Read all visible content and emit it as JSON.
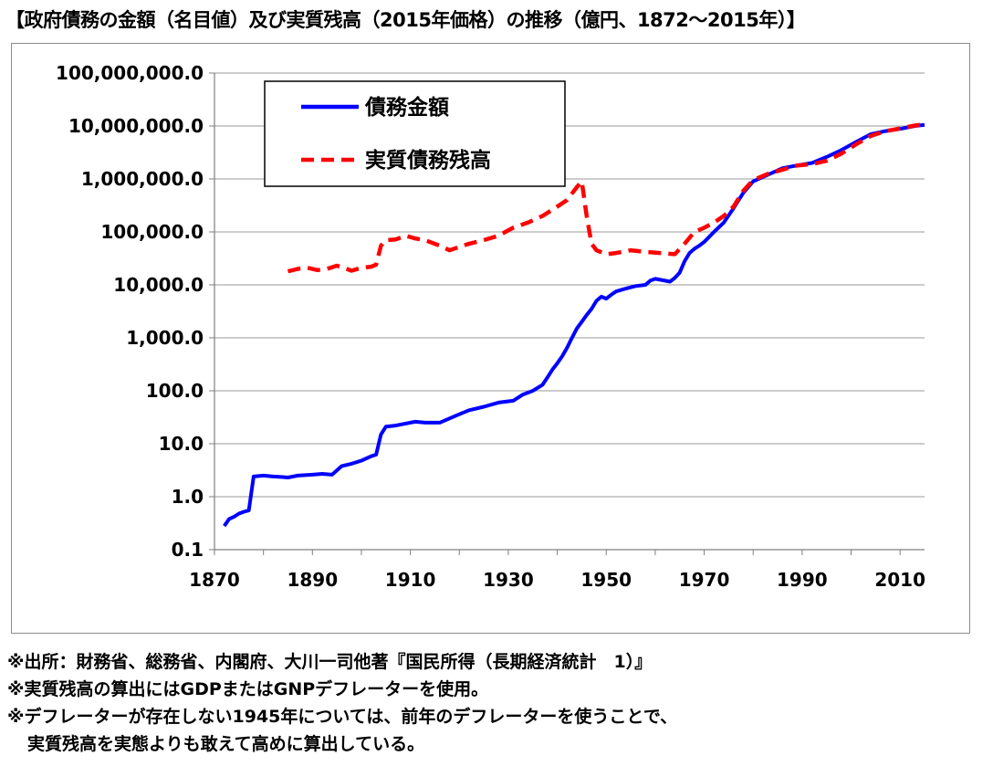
{
  "title": "【政府債務の金額（名目値）及び実質残高（2015年価格）の推移（億円、1872～2015年）】",
  "notes": [
    "※出所：財務省、総務省、内閣府、大川一司他著『国民所得（長期経済統計　1）』",
    "※実質残高の算出にはGDPまたはGNPデフレーターを使用。",
    "※デフレーターが存在しない1945年については、前年のデフレーターを使うことで、",
    "実質残高を実態よりも敢えて高めに算出している。"
  ],
  "chart_data": {
    "type": "line",
    "yscale": "log",
    "xlim": [
      1870,
      2015
    ],
    "ylim": [
      0.1,
      100000000
    ],
    "x_ticks": [
      1870,
      1890,
      1910,
      1930,
      1950,
      1970,
      1990,
      2010
    ],
    "y_ticks": [
      0.1,
      1,
      10,
      100,
      1000,
      10000,
      100000,
      1000000,
      10000000,
      100000000
    ],
    "y_tick_labels": [
      "0.1",
      "1.0",
      "10.0",
      "100.0",
      "1,000.0",
      "10,000.0",
      "100,000.0",
      "1,000,000.0",
      "10,000,000.0",
      "100,000,000.0"
    ],
    "grid": "horizontal",
    "legend_position": "top-left",
    "series": [
      {
        "name": "債務金額",
        "color": "#0000ff",
        "style": "solid",
        "points": [
          [
            1872,
            0.28
          ],
          [
            1873,
            0.38
          ],
          [
            1874,
            0.42
          ],
          [
            1875,
            0.48
          ],
          [
            1876,
            0.52
          ],
          [
            1877,
            0.55
          ],
          [
            1878,
            2.4
          ],
          [
            1880,
            2.5
          ],
          [
            1882,
            2.4
          ],
          [
            1884,
            2.35
          ],
          [
            1885,
            2.3
          ],
          [
            1887,
            2.5
          ],
          [
            1890,
            2.6
          ],
          [
            1892,
            2.7
          ],
          [
            1894,
            2.6
          ],
          [
            1896,
            3.8
          ],
          [
            1898,
            4.2
          ],
          [
            1900,
            4.8
          ],
          [
            1902,
            5.8
          ],
          [
            1903,
            6.2
          ],
          [
            1904,
            15
          ],
          [
            1905,
            21
          ],
          [
            1907,
            22
          ],
          [
            1909,
            24
          ],
          [
            1911,
            26
          ],
          [
            1913,
            25
          ],
          [
            1916,
            25
          ],
          [
            1918,
            30
          ],
          [
            1920,
            36
          ],
          [
            1922,
            43
          ],
          [
            1925,
            50
          ],
          [
            1928,
            60
          ],
          [
            1931,
            65
          ],
          [
            1933,
            85
          ],
          [
            1935,
            100
          ],
          [
            1937,
            130
          ],
          [
            1938,
            180
          ],
          [
            1939,
            250
          ],
          [
            1940,
            330
          ],
          [
            1941,
            450
          ],
          [
            1942,
            650
          ],
          [
            1943,
            1000
          ],
          [
            1944,
            1500
          ],
          [
            1945,
            2000
          ],
          [
            1946,
            2700
          ],
          [
            1947,
            3500
          ],
          [
            1948,
            5000
          ],
          [
            1949,
            6000
          ],
          [
            1950,
            5500
          ],
          [
            1951,
            6500
          ],
          [
            1952,
            7500
          ],
          [
            1954,
            8500
          ],
          [
            1956,
            9500
          ],
          [
            1958,
            10000
          ],
          [
            1959,
            12000
          ],
          [
            1960,
            13000
          ],
          [
            1962,
            12000
          ],
          [
            1963,
            11500
          ],
          [
            1964,
            13500
          ],
          [
            1965,
            17000
          ],
          [
            1966,
            28000
          ],
          [
            1967,
            40000
          ],
          [
            1968,
            48000
          ],
          [
            1969,
            55000
          ],
          [
            1970,
            65000
          ],
          [
            1971,
            80000
          ],
          [
            1972,
            100000
          ],
          [
            1974,
            150000
          ],
          [
            1976,
            280000
          ],
          [
            1978,
            550000
          ],
          [
            1980,
            900000
          ],
          [
            1983,
            1200000
          ],
          [
            1986,
            1600000
          ],
          [
            1989,
            1800000
          ],
          [
            1992,
            2000000
          ],
          [
            1995,
            2600000
          ],
          [
            1998,
            3500000
          ],
          [
            2001,
            5000000
          ],
          [
            2004,
            7000000
          ],
          [
            2007,
            8000000
          ],
          [
            2010,
            8800000
          ],
          [
            2013,
            10000000
          ],
          [
            2015,
            10500000
          ]
        ]
      },
      {
        "name": "実質債務残高",
        "color": "#ff0000",
        "style": "dashed",
        "points": [
          [
            1885,
            18000
          ],
          [
            1887,
            20000
          ],
          [
            1889,
            21000
          ],
          [
            1891,
            19000
          ],
          [
            1893,
            20000
          ],
          [
            1895,
            23000
          ],
          [
            1897,
            20000
          ],
          [
            1898,
            18500
          ],
          [
            1900,
            21000
          ],
          [
            1902,
            22000
          ],
          [
            1903,
            24000
          ],
          [
            1904,
            55000
          ],
          [
            1905,
            70000
          ],
          [
            1907,
            72000
          ],
          [
            1909,
            85000
          ],
          [
            1911,
            75000
          ],
          [
            1913,
            70000
          ],
          [
            1916,
            55000
          ],
          [
            1918,
            45000
          ],
          [
            1920,
            52000
          ],
          [
            1922,
            60000
          ],
          [
            1925,
            70000
          ],
          [
            1928,
            85000
          ],
          [
            1931,
            120000
          ],
          [
            1934,
            150000
          ],
          [
            1937,
            200000
          ],
          [
            1940,
            300000
          ],
          [
            1942,
            400000
          ],
          [
            1944,
            700000
          ],
          [
            1945,
            900000
          ],
          [
            1946,
            200000
          ],
          [
            1947,
            60000
          ],
          [
            1948,
            45000
          ],
          [
            1950,
            38000
          ],
          [
            1952,
            40000
          ],
          [
            1955,
            45000
          ],
          [
            1958,
            42000
          ],
          [
            1961,
            40000
          ],
          [
            1964,
            38000
          ],
          [
            1966,
            60000
          ],
          [
            1968,
            100000
          ],
          [
            1970,
            120000
          ],
          [
            1972,
            150000
          ],
          [
            1974,
            200000
          ],
          [
            1976,
            300000
          ],
          [
            1978,
            600000
          ],
          [
            1980,
            950000
          ],
          [
            1983,
            1250000
          ],
          [
            1986,
            1500000
          ],
          [
            1989,
            1800000
          ],
          [
            1992,
            1900000
          ],
          [
            1995,
            2200000
          ],
          [
            1998,
            3000000
          ],
          [
            2001,
            4500000
          ],
          [
            2004,
            6500000
          ],
          [
            2007,
            8000000
          ],
          [
            2010,
            9000000
          ],
          [
            2013,
            10200000
          ],
          [
            2015,
            10800000
          ]
        ]
      }
    ]
  }
}
